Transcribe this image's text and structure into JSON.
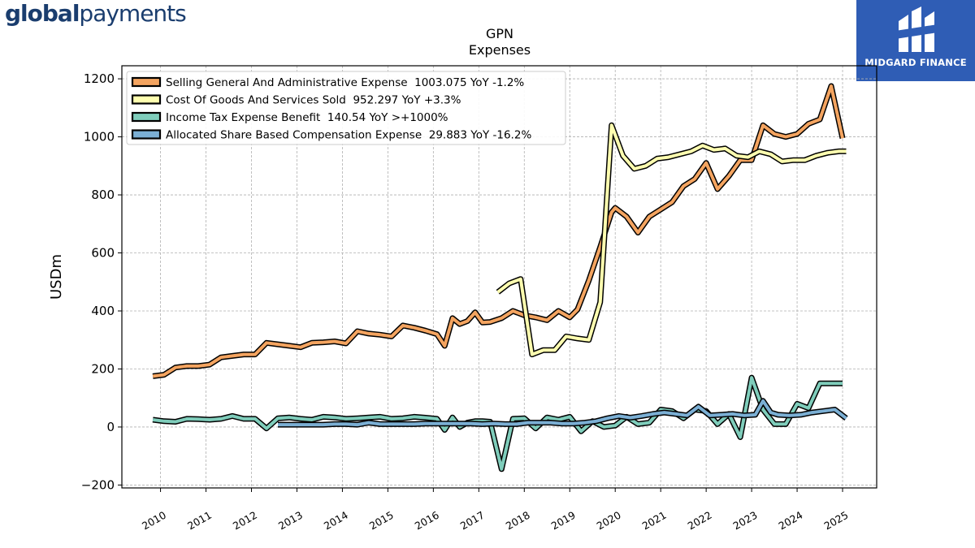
{
  "brand": {
    "logo_bold": "global",
    "logo_light": "payments",
    "badge_text": "MIDGARD FINANCE"
  },
  "colors": {
    "sga": "#f4a460",
    "cogs": "#ffffb0",
    "tax": "#7fcdbb",
    "sbc": "#7bafd4",
    "outline": "#000000",
    "badge": "#2f5db5"
  },
  "chart_data": {
    "type": "line",
    "title": "GPN",
    "subtitle": "Expenses",
    "ylabel": "USDm",
    "xlabel": "",
    "ylim": [
      -210,
      1245
    ],
    "xlim": [
      2009.15,
      2025.75
    ],
    "yticks": [
      -200,
      0,
      200,
      400,
      600,
      800,
      1000,
      1200
    ],
    "ytick_labels": [
      "−200",
      "0",
      "200",
      "400",
      "600",
      "800",
      "1000",
      "1200"
    ],
    "xticks": [
      2010,
      2011,
      2012,
      2013,
      2014,
      2015,
      2016,
      2017,
      2018,
      2019,
      2020,
      2021,
      2022,
      2023,
      2024,
      2025
    ],
    "xtick_labels": [
      "2010",
      "2011",
      "2012",
      "2013",
      "2014",
      "2015",
      "2016",
      "2017",
      "2018",
      "2019",
      "2020",
      "2021",
      "2022",
      "2023",
      "2024",
      "2025"
    ],
    "grid": true,
    "legend_position": "top-left",
    "series": [
      {
        "name": "Selling General And Administrative Expense  1003.075 YoY -1.2%",
        "color_key": "sga",
        "x": [
          2009.83,
          2010.08,
          2010.33,
          2010.58,
          2010.83,
          2011.08,
          2011.33,
          2011.58,
          2011.83,
          2012.08,
          2012.33,
          2012.58,
          2012.83,
          2013.08,
          2013.33,
          2013.58,
          2013.83,
          2014.08,
          2014.33,
          2014.58,
          2014.83,
          2015.08,
          2015.33,
          2015.58,
          2015.83,
          2016.08,
          2016.25,
          2016.42,
          2016.58,
          2016.75,
          2016.92,
          2017.08,
          2017.25,
          2017.5,
          2017.75,
          2018.0,
          2018.25,
          2018.5,
          2018.75,
          2019.0,
          2019.17,
          2019.42,
          2019.67,
          2019.92,
          2020.0,
          2020.25,
          2020.5,
          2020.75,
          2021.0,
          2021.25,
          2021.5,
          2021.75,
          2022.0,
          2022.25,
          2022.5,
          2022.75,
          2023.0,
          2023.25,
          2023.5,
          2023.75,
          2024.0,
          2024.25,
          2024.5,
          2024.75,
          2025.0
        ],
        "y": [
          175,
          180,
          205,
          210,
          210,
          215,
          240,
          245,
          250,
          250,
          290,
          285,
          280,
          275,
          290,
          292,
          295,
          288,
          330,
          322,
          318,
          312,
          350,
          342,
          332,
          320,
          280,
          375,
          355,
          365,
          395,
          360,
          362,
          375,
          400,
          385,
          378,
          368,
          400,
          378,
          405,
          505,
          620,
          740,
          755,
          725,
          670,
          725,
          750,
          775,
          830,
          855,
          910,
          820,
          865,
          920,
          920,
          1040,
          1010,
          1000,
          1010,
          1045,
          1060,
          1175,
          995
        ]
      },
      {
        "name": "Cost Of Goods And Services Sold  952.297 YoY +3.3%",
        "color_key": "cogs",
        "x": [
          2017.42,
          2017.67,
          2017.92,
          2018.17,
          2018.42,
          2018.67,
          2018.92,
          2019.17,
          2019.42,
          2019.67,
          2019.92,
          2020.17,
          2020.42,
          2020.67,
          2020.92,
          2021.17,
          2021.42,
          2021.67,
          2021.92,
          2022.17,
          2022.42,
          2022.67,
          2022.92,
          2023.17,
          2023.42,
          2023.67,
          2023.92,
          2024.17,
          2024.42,
          2024.67,
          2024.92,
          2025.08
        ],
        "y": [
          465,
          495,
          510,
          250,
          265,
          265,
          312,
          305,
          300,
          430,
          1040,
          935,
          890,
          900,
          925,
          930,
          940,
          950,
          970,
          955,
          960,
          935,
          930,
          950,
          940,
          915,
          920,
          920,
          935,
          945,
          950,
          950
        ]
      },
      {
        "name": "Income Tax Expense Benefit  140.54 YoY >+1000%",
        "color_key": "tax",
        "x": [
          2009.83,
          2010.08,
          2010.33,
          2010.58,
          2010.83,
          2011.08,
          2011.33,
          2011.58,
          2011.83,
          2012.08,
          2012.33,
          2012.58,
          2012.83,
          2013.08,
          2013.33,
          2013.58,
          2013.83,
          2014.08,
          2014.33,
          2014.58,
          2014.83,
          2015.08,
          2015.33,
          2015.58,
          2015.83,
          2016.08,
          2016.25,
          2016.42,
          2016.58,
          2016.75,
          2016.92,
          2017.08,
          2017.25,
          2017.5,
          2017.75,
          2018.0,
          2018.25,
          2018.5,
          2018.75,
          2019.0,
          2019.25,
          2019.5,
          2019.75,
          2020.0,
          2020.25,
          2020.5,
          2020.75,
          2021.0,
          2021.25,
          2021.5,
          2021.75,
          2022.0,
          2022.25,
          2022.5,
          2022.75,
          2023.0,
          2023.25,
          2023.5,
          2023.75,
          2024.0,
          2024.25,
          2024.5,
          2024.75,
          2025.0
        ],
        "y": [
          25,
          20,
          18,
          28,
          27,
          25,
          28,
          38,
          28,
          28,
          -5,
          30,
          33,
          28,
          25,
          35,
          33,
          28,
          30,
          33,
          35,
          28,
          30,
          35,
          32,
          28,
          -10,
          33,
          0,
          15,
          20,
          20,
          18,
          -145,
          28,
          30,
          -5,
          33,
          25,
          35,
          -15,
          20,
          0,
          5,
          35,
          10,
          15,
          60,
          55,
          30,
          60,
          55,
          10,
          45,
          -35,
          170,
          60,
          10,
          10,
          80,
          65,
          150,
          150,
          150
        ]
      },
      {
        "name": "Allocated Share Based Compensation Expense  29.883 YoY -16.2%",
        "color_key": "sbc",
        "x": [
          2012.58,
          2012.83,
          2013.08,
          2013.33,
          2013.58,
          2013.83,
          2014.08,
          2014.33,
          2014.58,
          2014.83,
          2015.08,
          2015.33,
          2015.58,
          2015.83,
          2016.08,
          2016.33,
          2016.58,
          2016.83,
          2017.08,
          2017.33,
          2017.58,
          2017.83,
          2018.08,
          2018.33,
          2018.58,
          2018.83,
          2019.08,
          2019.33,
          2019.58,
          2019.83,
          2020.08,
          2020.33,
          2020.58,
          2020.83,
          2021.08,
          2021.33,
          2021.58,
          2021.83,
          2022.08,
          2022.33,
          2022.58,
          2022.83,
          2023.08,
          2023.25,
          2023.42,
          2023.58,
          2023.83,
          2024.08,
          2024.33,
          2024.58,
          2024.83,
          2025.08
        ],
        "y": [
          8,
          8,
          8,
          8,
          8,
          10,
          10,
          8,
          15,
          10,
          10,
          10,
          10,
          12,
          12,
          12,
          12,
          12,
          10,
          12,
          10,
          10,
          15,
          15,
          15,
          12,
          12,
          15,
          20,
          30,
          38,
          32,
          38,
          45,
          50,
          45,
          40,
          70,
          40,
          42,
          45,
          40,
          42,
          90,
          50,
          42,
          40,
          42,
          50,
          55,
          60,
          30
        ]
      }
    ]
  }
}
